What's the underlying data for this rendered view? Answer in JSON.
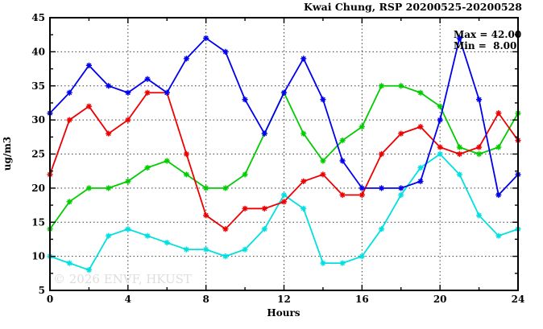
{
  "title": "Kwai Chung, RSP 20200525-20200528",
  "watermark": "© 2026 ENVF, HKUST",
  "chart_data": {
    "type": "line",
    "title": "Kwai Chung, RSP 20200525-20200528",
    "xlabel": "Hours",
    "ylabel": "ug/m3",
    "xlim": [
      0,
      24
    ],
    "ylim": [
      5,
      45
    ],
    "xticks": [
      0,
      4,
      8,
      12,
      16,
      20,
      24
    ],
    "xtick_minor_step": 2,
    "yticks": [
      5,
      10,
      15,
      20,
      25,
      30,
      35,
      40,
      45
    ],
    "ytick_minor_step": 2.5,
    "grid": true,
    "legend": "none",
    "marker": "asterisk",
    "stats": {
      "max": "Max = 42.00",
      "min": "Min =  8.00"
    },
    "x": [
      0,
      1,
      2,
      3,
      4,
      5,
      6,
      7,
      8,
      9,
      10,
      11,
      12,
      13,
      14,
      15,
      16,
      17,
      18,
      19,
      20,
      21,
      22,
      23,
      24
    ],
    "series": [
      {
        "name": "green",
        "color": "#00cc00",
        "values": [
          14,
          18,
          20,
          20,
          21,
          23,
          24,
          22,
          20,
          20,
          22,
          28,
          34,
          28,
          24,
          27,
          29,
          35,
          35,
          34,
          32,
          26,
          25,
          26,
          31
        ]
      },
      {
        "name": "cyan",
        "color": "#00e0e0",
        "values": [
          10,
          9,
          8,
          13,
          14,
          13,
          12,
          11,
          11,
          10,
          11,
          14,
          19,
          17,
          9,
          9,
          10,
          14,
          19,
          23,
          25,
          22,
          16,
          13,
          14
        ]
      },
      {
        "name": "red",
        "color": "#ee0000",
        "values": [
          22,
          30,
          32,
          28,
          30,
          34,
          34,
          25,
          16,
          14,
          17,
          17,
          18,
          21,
          22,
          19,
          19,
          25,
          28,
          29,
          26,
          25,
          26,
          31,
          27
        ]
      },
      {
        "name": "blue",
        "color": "#0000ee",
        "values": [
          31,
          34,
          38,
          35,
          34,
          36,
          34,
          39,
          42,
          40,
          33,
          28,
          34,
          39,
          33,
          24,
          20,
          20,
          20,
          21,
          30,
          42,
          33,
          19,
          22
        ]
      }
    ]
  }
}
